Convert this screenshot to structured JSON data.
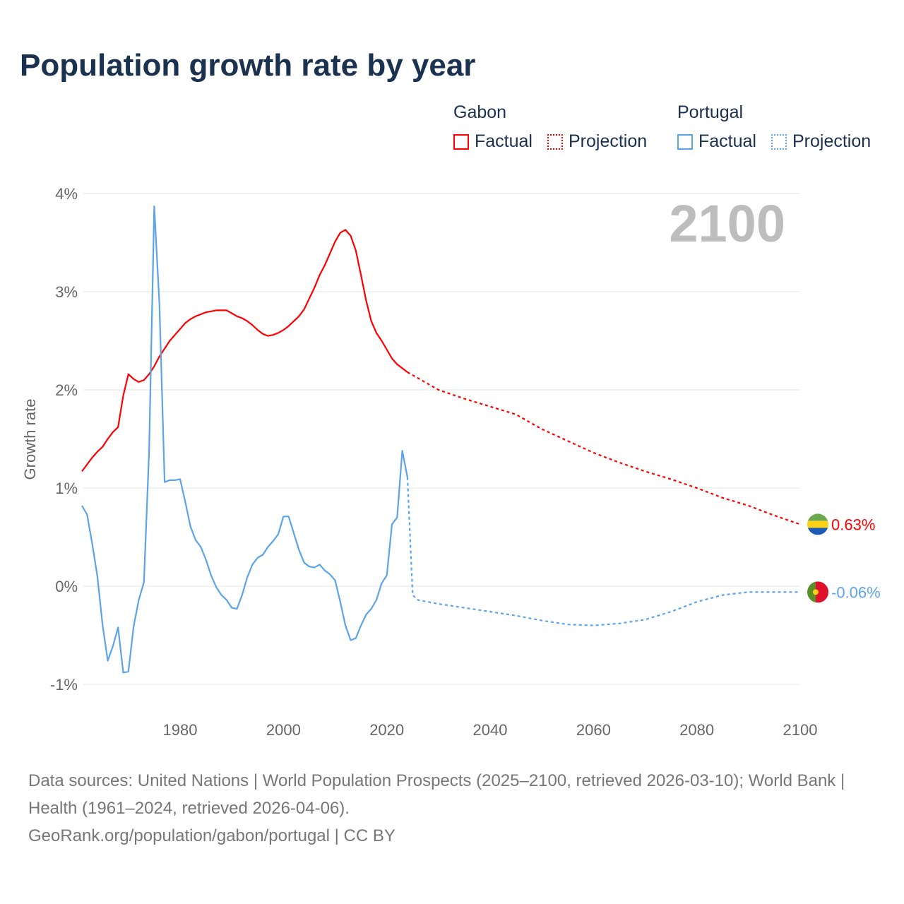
{
  "title": "Population growth rate by year",
  "legend": {
    "groups": [
      {
        "name": "Gabon",
        "factual": "Factual",
        "projection": "Projection",
        "color": "#ff0000"
      },
      {
        "name": "Portugal",
        "factual": "Factual",
        "projection": "Projection",
        "color": "#5ba4ea"
      }
    ]
  },
  "footer": {
    "sources": "Data sources: United Nations | World Population Prospects (2025–2100, retrieved 2026-03-10); World Bank | Health (1961–2024, retrieved 2026-04-06).",
    "link": "GeoRank.org/population/gabon/portugal | CC BY"
  },
  "chart_data": {
    "type": "line",
    "title": "Population growth rate by year",
    "ylabel": "Growth rate",
    "xlabel": "",
    "current_year_label": "2100",
    "xlim": [
      1961,
      2100
    ],
    "ylim": [
      -1,
      4
    ],
    "xticks": [
      "1980",
      "2000",
      "2020",
      "2040",
      "2060",
      "2080",
      "2100"
    ],
    "yticks": [
      "-1%",
      "0%",
      "1%",
      "2%",
      "3%",
      "4%"
    ],
    "grid": true,
    "series": [
      {
        "name": "Gabon",
        "color": "#ff0000",
        "end_label": "0.63%",
        "factual": {
          "start_year": 1961,
          "values": [
            1.17,
            1.24,
            1.31,
            1.37,
            1.42,
            1.5,
            1.57,
            1.62,
            1.94,
            2.16,
            2.11,
            2.08,
            2.1,
            2.16,
            2.24,
            2.34,
            2.42,
            2.5,
            2.56,
            2.62,
            2.68,
            2.72,
            2.75,
            2.77,
            2.79,
            2.8,
            2.81,
            2.81,
            2.81,
            2.78,
            2.75,
            2.73,
            2.7,
            2.66,
            2.61,
            2.57,
            2.55,
            2.56,
            2.58,
            2.61,
            2.65,
            2.7,
            2.75,
            2.82,
            2.93,
            3.04,
            3.17,
            3.27,
            3.39,
            3.51,
            3.6,
            3.63,
            3.57,
            3.42,
            3.17,
            2.91,
            2.7,
            2.58,
            2.5,
            2.41,
            2.32,
            2.26,
            2.22,
            2.18
          ]
        },
        "projection": {
          "years": [
            2024,
            2025,
            2030,
            2035,
            2040,
            2045,
            2050,
            2055,
            2060,
            2065,
            2070,
            2075,
            2080,
            2085,
            2090,
            2095,
            2100
          ],
          "values": [
            2.18,
            2.15,
            2.0,
            1.91,
            1.83,
            1.75,
            1.6,
            1.48,
            1.36,
            1.26,
            1.17,
            1.09,
            1.0,
            0.9,
            0.82,
            0.72,
            0.63
          ]
        }
      },
      {
        "name": "Portugal",
        "color": "#5ba4ea",
        "end_label": "-0.06%",
        "factual": {
          "start_year": 1961,
          "values": [
            0.82,
            0.73,
            0.43,
            0.1,
            -0.4,
            -0.76,
            -0.61,
            -0.42,
            -0.88,
            -0.87,
            -0.41,
            -0.14,
            0.04,
            1.37,
            3.87,
            2.88,
            1.06,
            1.08,
            1.08,
            1.09,
            0.86,
            0.61,
            0.47,
            0.4,
            0.27,
            0.11,
            -0.01,
            -0.09,
            -0.14,
            -0.22,
            -0.23,
            -0.09,
            0.09,
            0.22,
            0.29,
            0.32,
            0.4,
            0.46,
            0.53,
            0.71,
            0.71,
            0.54,
            0.37,
            0.24,
            0.2,
            0.19,
            0.22,
            0.16,
            0.12,
            0.06,
            -0.16,
            -0.4,
            -0.55,
            -0.53,
            -0.4,
            -0.29,
            -0.23,
            -0.14,
            0.03,
            0.11,
            0.63,
            0.7,
            1.38,
            1.11
          ]
        },
        "projection": {
          "years": [
            2024,
            2025,
            2026,
            2030,
            2035,
            2040,
            2045,
            2050,
            2055,
            2060,
            2065,
            2070,
            2075,
            2080,
            2085,
            2090,
            2095,
            2100
          ],
          "values": [
            1.11,
            -0.09,
            -0.14,
            -0.18,
            -0.22,
            -0.26,
            -0.3,
            -0.35,
            -0.39,
            -0.4,
            -0.38,
            -0.34,
            -0.26,
            -0.16,
            -0.09,
            -0.06,
            -0.06,
            -0.06
          ]
        }
      }
    ]
  }
}
